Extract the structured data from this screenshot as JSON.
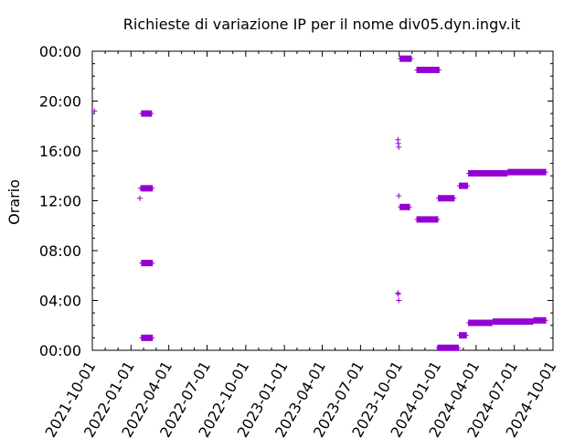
{
  "chart_data": {
    "type": "scatter",
    "title": "Richieste di variazione IP per il nome div05.dyn.ingv.it",
    "xlabel": "",
    "ylabel": "Orario",
    "x_axis": {
      "type": "date",
      "range": [
        "2021-10-01",
        "2024-10-01"
      ],
      "tick_labels": [
        "2021-10-01",
        "2022-01-01",
        "2022-04-01",
        "2022-07-01",
        "2022-10-01",
        "2023-01-01",
        "2023-04-01",
        "2023-07-01",
        "2023-10-01",
        "2024-01-01",
        "2024-04-01",
        "2024-07-01",
        "2024-10-01"
      ]
    },
    "y_axis": {
      "unit": "hours",
      "range": [
        0,
        24
      ],
      "tick_values": [
        0,
        4,
        8,
        12,
        16,
        20,
        24
      ],
      "tick_labels": [
        "00:00",
        "04:00",
        "08:00",
        "12:00",
        "16:00",
        "20:00",
        "00:00"
      ]
    },
    "grid": false,
    "legend": false,
    "marker": "+",
    "color": "#9400d3",
    "points": [
      {
        "x": "2021-10-06",
        "y": 19.2
      },
      {
        "x": "2022-01-22",
        "y": 12.2
      },
      {
        "x": "2022-01-24",
        "y": 13.0
      },
      {
        "x": "2023-09-28",
        "y": 16.9
      },
      {
        "x": "2023-09-29",
        "y": 16.6
      },
      {
        "x": "2023-09-30",
        "y": 16.3
      },
      {
        "x": "2023-09-30",
        "y": 12.4
      },
      {
        "x": "2023-09-28",
        "y": 4.6
      },
      {
        "x": "2023-09-29",
        "y": 4.5
      },
      {
        "x": "2023-09-30",
        "y": 4.0
      }
    ],
    "segments": [
      {
        "x_start": "2022-01-25",
        "x_end": "2022-02-20",
        "y": 19.0
      },
      {
        "x_start": "2022-01-25",
        "x_end": "2022-02-22",
        "y": 13.0
      },
      {
        "x_start": "2022-01-25",
        "x_end": "2022-02-22",
        "y": 7.0
      },
      {
        "x_start": "2022-01-25",
        "x_end": "2022-02-22",
        "y": 1.0
      },
      {
        "x_start": "2023-10-02",
        "x_end": "2023-10-31",
        "y": 23.4
      },
      {
        "x_start": "2023-11-11",
        "x_end": "2024-01-05",
        "y": 22.5
      },
      {
        "x_start": "2023-10-02",
        "x_end": "2023-10-27",
        "y": 11.5
      },
      {
        "x_start": "2023-11-11",
        "x_end": "2024-01-02",
        "y": 10.5
      },
      {
        "x_start": "2024-01-01",
        "x_end": "2024-02-10",
        "y": 12.2
      },
      {
        "x_start": "2024-01-01",
        "x_end": "2024-02-20",
        "y": 0.2
      },
      {
        "x_start": "2024-02-20",
        "x_end": "2024-03-10",
        "y": 1.2
      },
      {
        "x_start": "2024-02-20",
        "x_end": "2024-03-13",
        "y": 13.2
      },
      {
        "x_start": "2024-03-13",
        "x_end": "2024-05-10",
        "y": 2.2
      },
      {
        "x_start": "2024-03-13",
        "x_end": "2024-06-15",
        "y": 14.2
      },
      {
        "x_start": "2024-05-10",
        "x_end": "2024-08-15",
        "y": 2.3
      },
      {
        "x_start": "2024-06-15",
        "x_end": "2024-09-15",
        "y": 14.3
      },
      {
        "x_start": "2024-08-15",
        "x_end": "2024-09-15",
        "y": 2.4
      }
    ]
  }
}
